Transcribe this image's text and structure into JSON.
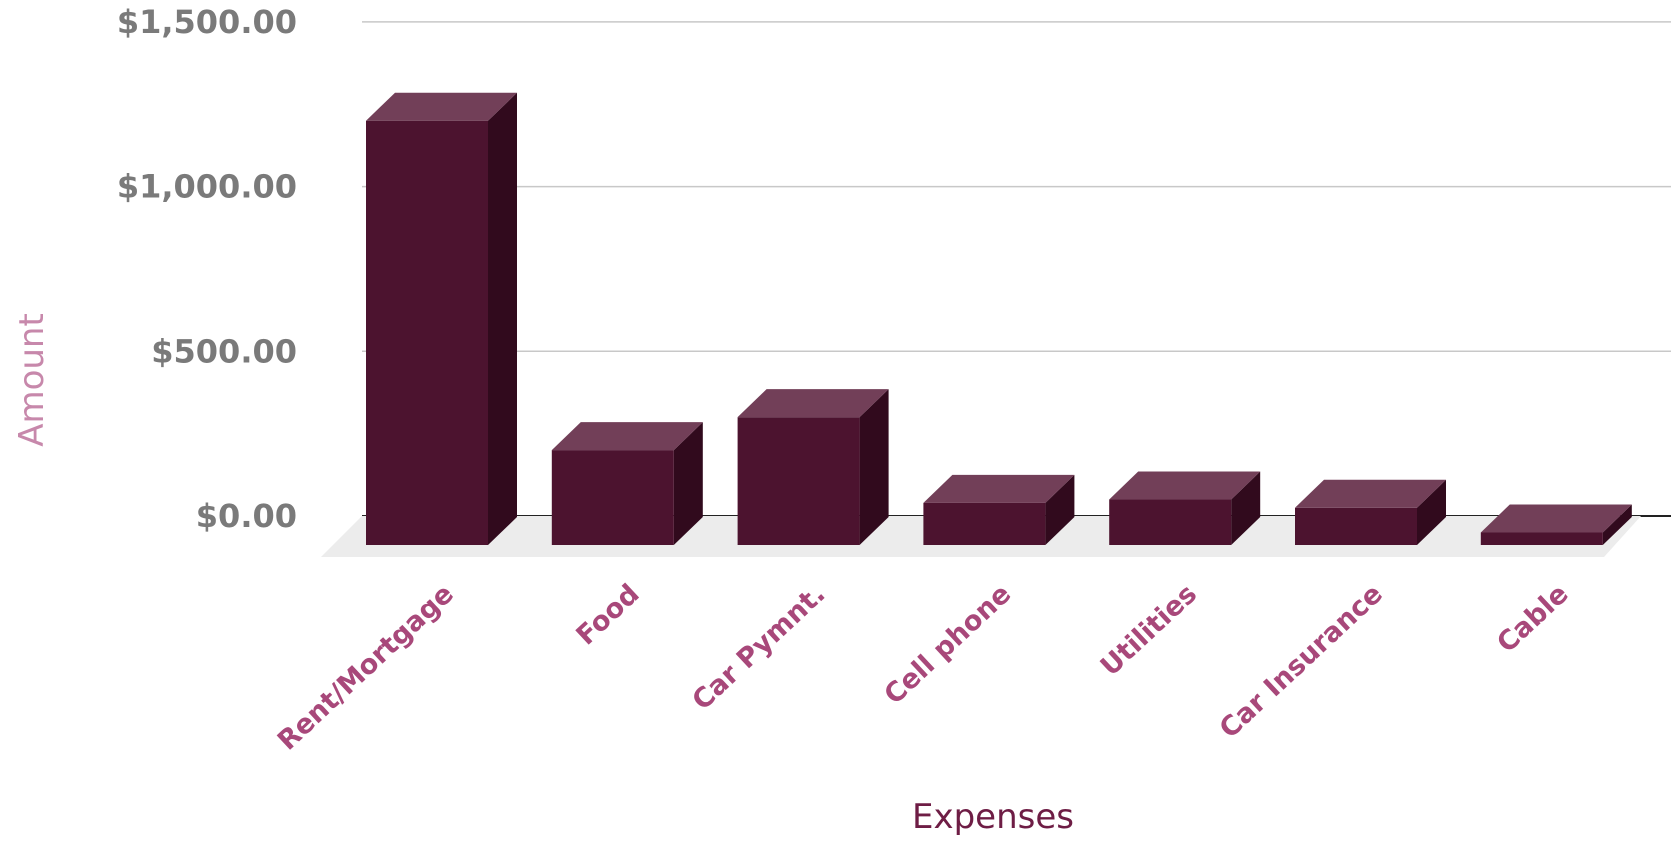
{
  "chart_data": {
    "type": "bar",
    "style": "3d-column",
    "categories": [
      "Rent/Mortgage",
      "Food",
      "Car Pymnt.",
      "Cell phone",
      "Utilities",
      "Car Insurance",
      "Cable"
    ],
    "values": [
      1200,
      200,
      300,
      40,
      50,
      25,
      -50
    ],
    "title": "",
    "xlabel": "Expenses",
    "ylabel": "Amount",
    "ylim": [
      -50,
      1500
    ],
    "yticks": [
      0,
      500,
      1000,
      1500
    ],
    "ytick_labels": [
      "$0.00",
      "$500.00",
      "$1,000.00",
      "$1,500.00"
    ],
    "grid": true,
    "legend": "none"
  },
  "colors": {
    "bar_front": "#4c132f",
    "bar_top": "#723f58",
    "bar_side": "#310a1d",
    "floor": "#ececec",
    "category_label": "#a8487a",
    "ylabel": "#c788ab",
    "xlabel": "#6e1d45",
    "tick_label": "#7a7a7a",
    "grid": "#c8c8c8"
  }
}
